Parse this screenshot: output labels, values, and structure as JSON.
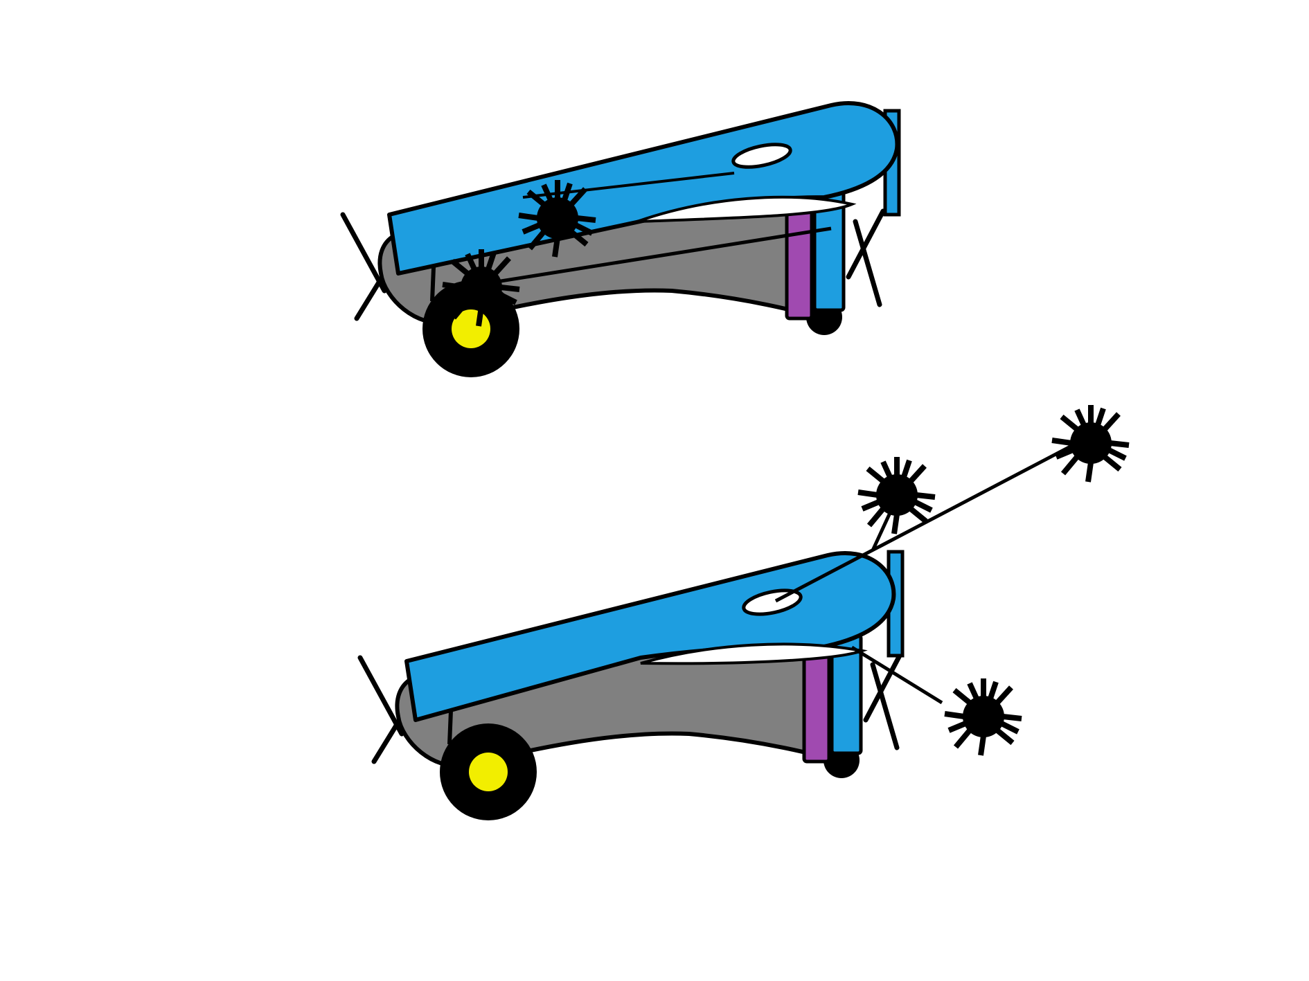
{
  "colors": {
    "background": "#ffffff",
    "body_gray": "#808080",
    "arm_blue": "#1e9ee0",
    "piston_purple": "#a04ab0",
    "wheel_hub_yellow": "#f2ee00",
    "outline_black": "#000000",
    "hole_white": "#ffffff"
  },
  "figures": [
    {
      "state": "loaded",
      "icon": "catapult-icon"
    },
    {
      "state": "fired",
      "icon": "catapult-icon"
    }
  ],
  "projectiles": [
    {
      "icon": "spiky-ball-icon"
    },
    {
      "icon": "spiky-ball-icon"
    },
    {
      "icon": "spiky-ball-icon"
    },
    {
      "icon": "spiky-ball-icon"
    },
    {
      "icon": "spiky-ball-icon"
    }
  ]
}
